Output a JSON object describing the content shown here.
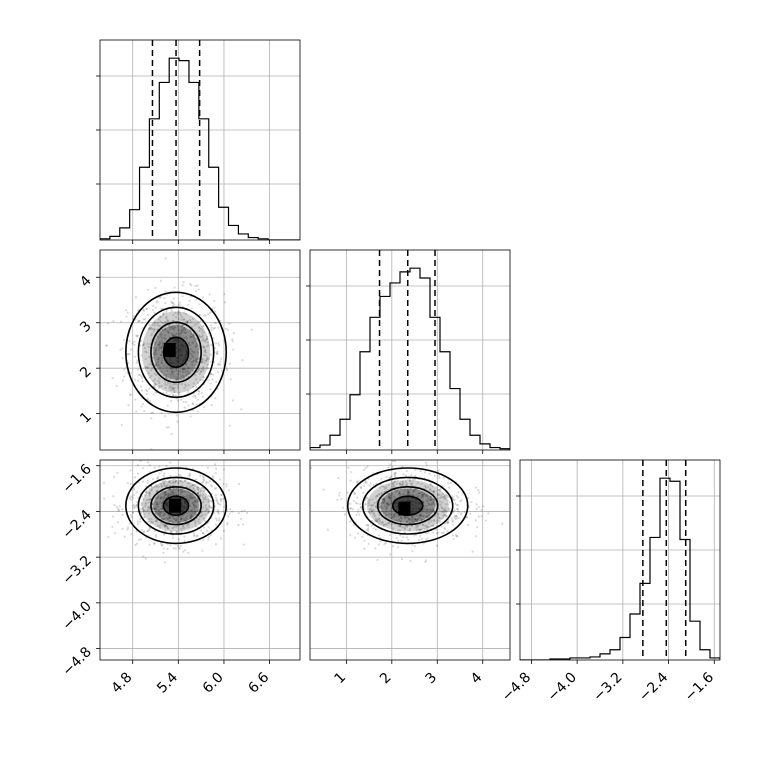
{
  "chart_data": {
    "type": "corner",
    "parameters": [
      "",
      "",
      ""
    ],
    "ranges": [
      [
        4.37,
        7.0
      ],
      [
        0.2,
        4.6
      ],
      [
        -5.0,
        -1.5
      ]
    ],
    "ticks": [
      [
        4.8,
        5.4,
        6.0,
        6.6
      ],
      [
        1,
        2,
        3,
        4
      ],
      [
        -4.8,
        -4.0,
        -3.2,
        -2.4,
        -1.6
      ]
    ],
    "tick_labels": [
      [
        "4.8",
        "5.4",
        "6.0",
        "6.6"
      ],
      [
        "1",
        "2",
        "3",
        "4"
      ],
      [
        "−4.8",
        "−4.0",
        "−3.2",
        "−2.4",
        "−1.6"
      ]
    ],
    "quantiles": [
      [
        5.06,
        5.37,
        5.68
      ],
      [
        1.73,
        2.35,
        2.95
      ],
      [
        -2.85,
        -2.44,
        -2.1
      ]
    ],
    "histograms": [
      {
        "bin_edges": [
          4.37,
          4.5,
          4.63,
          4.76,
          4.89,
          5.02,
          5.15,
          5.28,
          5.41,
          5.54,
          5.67,
          5.8,
          5.93,
          6.06,
          6.19,
          6.32,
          6.45,
          6.58,
          6.71,
          6.84,
          7.0
        ],
        "counts": [
          1,
          3,
          10,
          25,
          60,
          100,
          130,
          150,
          148,
          130,
          100,
          60,
          27,
          12,
          5,
          2,
          1,
          0,
          0,
          0
        ]
      },
      {
        "bin_edges": [
          0.2,
          0.42,
          0.64,
          0.86,
          1.08,
          1.3,
          1.52,
          1.74,
          1.96,
          2.18,
          2.4,
          2.62,
          2.84,
          3.06,
          3.28,
          3.5,
          3.72,
          3.94,
          4.16,
          4.38,
          4.6
        ],
        "counts": [
          2,
          4,
          12,
          25,
          45,
          80,
          108,
          125,
          136,
          145,
          148,
          140,
          108,
          80,
          50,
          25,
          12,
          5,
          2,
          1
        ]
      },
      {
        "bin_edges": [
          -5.0,
          -4.825,
          -4.65,
          -4.475,
          -4.3,
          -4.125,
          -3.95,
          -3.775,
          -3.6,
          -3.425,
          -3.25,
          -3.075,
          -2.9,
          -2.725,
          -2.55,
          -2.375,
          -2.2,
          -2.025,
          -1.85,
          -1.675,
          -1.5
        ],
        "counts": [
          0,
          0,
          0,
          1,
          1,
          2,
          2,
          3,
          6,
          10,
          22,
          45,
          75,
          120,
          178,
          175,
          118,
          38,
          10,
          2
        ]
      }
    ],
    "pairs": [
      {
        "row": 1,
        "col": 0,
        "center": [
          5.37,
          2.35
        ],
        "sigma": [
          0.3,
          0.6
        ],
        "levels_scale": [
          0.25,
          0.5,
          0.8,
          1.05
        ],
        "peak": [
          5.3,
          2.4
        ]
      },
      {
        "row": 2,
        "col": 0,
        "center": [
          5.37,
          -2.3
        ],
        "sigma": [
          0.3,
          0.3
        ],
        "levels_scale": [
          0.25,
          0.5,
          0.8,
          1.05
        ],
        "peak": [
          5.37,
          -2.3
        ]
      },
      {
        "row": 2,
        "col": 1,
        "center": [
          2.35,
          -2.3
        ],
        "sigma": [
          0.6,
          0.3
        ],
        "levels_scale": [
          0.25,
          0.5,
          0.8,
          1.05
        ],
        "peak": [
          2.3,
          -2.35
        ]
      }
    ],
    "grid": true
  }
}
